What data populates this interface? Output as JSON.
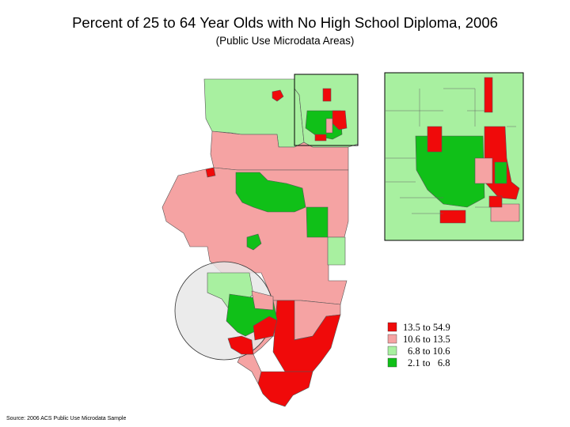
{
  "title": "Percent of 25 to 64 Year Olds with No High School Diploma, 2006",
  "subtitle": "(Public Use Microdata Areas)",
  "source": "Source: 2006 ACS Public Use Microdata Sample",
  "legend": {
    "items": [
      {
        "label": "13.5 to 54.9",
        "color": "#f00a0a"
      },
      {
        "label": "10.6 to 13.5",
        "color": "#f5a3a3"
      },
      {
        "label": "6.8 to 10.6",
        "color": "#a8f0a0"
      },
      {
        "label": "2.1 to   6.8",
        "color": "#10c018"
      }
    ]
  },
  "colors": {
    "high": "#f00a0a",
    "mid_high": "#f5a3a3",
    "mid_low": "#a8f0a0",
    "low": "#10c018",
    "border": "#555555",
    "highlight_circle": "#e8e8e8"
  }
}
